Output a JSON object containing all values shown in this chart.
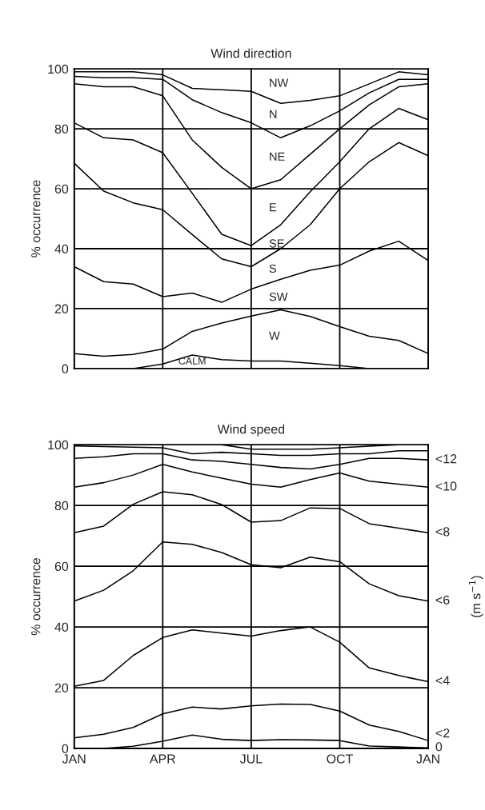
{
  "chart_data": [
    {
      "type": "line",
      "title": "Wind direction",
      "ylabel": "% occurrence",
      "categories": [
        null,
        null,
        null,
        null,
        null,
        null,
        null,
        null,
        null,
        null,
        null,
        null,
        null
      ],
      "ylim": [
        0,
        100
      ],
      "yticks": [
        0,
        20,
        40,
        60,
        80,
        100
      ],
      "grid": true,
      "tick_labels": "y",
      "legend": false,
      "series": [
        {
          "color": "#000000",
          "values": [
            99,
            99,
            99,
            98,
            93.5,
            93,
            92.5,
            88.5,
            89.5,
            91,
            95,
            99,
            98
          ]
        },
        {
          "color": "#000000",
          "values": [
            97.5,
            97,
            97,
            96.5,
            89.7,
            85.4,
            82,
            77,
            81,
            86,
            92,
            96.5,
            96.5
          ]
        },
        {
          "color": "#000000",
          "values": [
            95,
            94,
            94,
            91,
            76.3,
            67.1,
            60,
            63,
            71.5,
            80,
            88,
            94,
            95
          ]
        },
        {
          "color": "#000000",
          "values": [
            82,
            77,
            76.3,
            72,
            58.5,
            44.8,
            41,
            48,
            59,
            69,
            80,
            86.8,
            83
          ]
        },
        {
          "color": "#000000",
          "values": [
            68.5,
            59.2,
            55.3,
            53,
            44.7,
            36.6,
            34,
            40,
            48,
            60,
            69,
            75.4,
            71
          ]
        },
        {
          "color": "#000000",
          "values": [
            34,
            29,
            28.2,
            24,
            25.2,
            22.1,
            26.5,
            29.8,
            32.8,
            34.5,
            39.2,
            42.5,
            36
          ]
        },
        {
          "color": "#000000",
          "values": [
            5,
            4.1,
            4.7,
            6.5,
            12.4,
            15.2,
            17.5,
            19.6,
            17.4,
            14,
            10.8,
            9.4,
            5
          ]
        },
        {
          "color": "#000000",
          "values": [
            0,
            0,
            0,
            1.5,
            4.5,
            3,
            2.5,
            2.5,
            1.8,
            1,
            0,
            0,
            0
          ]
        }
      ],
      "annotations": [
        "NW",
        "N",
        "NE",
        "E",
        "SE",
        "S",
        "SW",
        "W",
        "CALM"
      ]
    },
    {
      "type": "line",
      "title": "Wind speed",
      "ylabel": "% occurrence",
      "categories": [
        "JAN",
        null,
        null,
        "APR",
        null,
        null,
        "JUL",
        null,
        null,
        "OCT",
        null,
        null,
        "JAN"
      ],
      "ylim": [
        0,
        100
      ],
      "yticks": [
        0,
        20,
        40,
        60,
        80,
        100
      ],
      "grid": true,
      "legend": false,
      "series": [
        {
          "color": "#000000",
          "values": [
            100,
            100,
            100,
            100,
            100,
            100,
            98.5,
            98.5,
            98.5,
            99,
            99.5,
            100,
            100
          ]
        },
        {
          "color": "#000000",
          "values": [
            99.6,
            99.4,
            99.2,
            99,
            97,
            97.5,
            97,
            96.5,
            96.5,
            97,
            97,
            98,
            98
          ]
        },
        {
          "name": "<12",
          "color": "#000000",
          "values": [
            95.5,
            96,
            97,
            97,
            95,
            94.5,
            93.5,
            92.5,
            92,
            93.5,
            95.5,
            95.5,
            95
          ]
        },
        {
          "name": "<10",
          "color": "#000000",
          "values": [
            86,
            87.5,
            90,
            93.5,
            91,
            89,
            87,
            86,
            88.5,
            90.7,
            88,
            87,
            86
          ]
        },
        {
          "name": "<8",
          "color": "#000000",
          "values": [
            71,
            73.2,
            80.4,
            84.5,
            83.5,
            80.3,
            74.5,
            75,
            79.2,
            79,
            74,
            72.5,
            71
          ]
        },
        {
          "name": "<6",
          "color": "#000000",
          "values": [
            48.5,
            52.1,
            58.5,
            68,
            67.2,
            64.5,
            60.5,
            59.5,
            63,
            61.5,
            54.2,
            50.3,
            48.5
          ]
        },
        {
          "name": "<4",
          "color": "#000000",
          "values": [
            20.5,
            22.4,
            30.6,
            36.5,
            39,
            38,
            37,
            38.8,
            40,
            35,
            26.5,
            24,
            22
          ]
        },
        {
          "name": "<2",
          "color": "#000000",
          "values": [
            3.5,
            4.7,
            6.9,
            11.4,
            13.6,
            13,
            14,
            14.6,
            14.5,
            12.3,
            7.7,
            5.6,
            2.6
          ]
        },
        {
          "name": "0",
          "color": "#000000",
          "values": [
            0,
            0,
            0.7,
            2.4,
            4.4,
            3,
            2.6,
            2.9,
            2.8,
            2.6,
            0.8,
            0.5,
            0.2
          ]
        }
      ],
      "annotations": [
        "(m s$^{−1}$)"
      ]
    }
  ]
}
